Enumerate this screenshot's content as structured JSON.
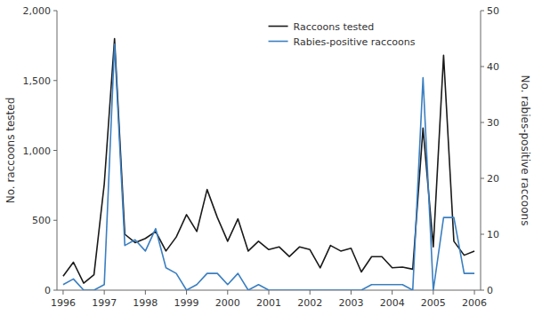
{
  "chart_data": {
    "type": "line",
    "x": [
      1996.0,
      1996.25,
      1996.5,
      1996.75,
      1997.0,
      1997.25,
      1997.5,
      1997.75,
      1998.0,
      1998.25,
      1998.5,
      1998.75,
      1999.0,
      1999.25,
      1999.5,
      1999.75,
      2000.0,
      2000.25,
      2000.5,
      2000.75,
      2001.0,
      2001.25,
      2001.5,
      2001.75,
      2002.0,
      2002.25,
      2002.5,
      2002.75,
      2003.0,
      2003.25,
      2003.5,
      2003.75,
      2004.0,
      2004.25,
      2004.5,
      2004.75,
      2005.0,
      2005.25,
      2005.5,
      2005.75,
      2006.0
    ],
    "series": [
      {
        "name": "Raccoons tested",
        "color": "#1a1a1a",
        "values": [
          100,
          200,
          50,
          110,
          760,
          1800,
          400,
          340,
          370,
          420,
          280,
          380,
          540,
          420,
          720,
          520,
          350,
          510,
          280,
          350,
          290,
          310,
          240,
          310,
          290,
          160,
          320,
          280,
          300,
          130,
          240,
          240,
          160,
          165,
          150,
          1160,
          310,
          1680,
          350,
          250,
          280
        ]
      },
      {
        "name": "Rabies-positive raccoons",
        "color": "#3a7fc1",
        "axis": "y2",
        "values": [
          1,
          2,
          0,
          0,
          1,
          44,
          8,
          9,
          7,
          11,
          4,
          3,
          0,
          1,
          3,
          3,
          1,
          3,
          0,
          1,
          0,
          0,
          0,
          0,
          0,
          0,
          0,
          0,
          0,
          0,
          1,
          1,
          1,
          1,
          0,
          38,
          0,
          13,
          13,
          3,
          3
        ]
      }
    ],
    "y_label": "No. raccoons tested",
    "y2_label": "No. rabies-positive raccoons",
    "xlim": [
      1995.85,
      2006.15
    ],
    "xticks": [
      1996,
      1997,
      1998,
      1999,
      2000,
      2001,
      2002,
      2003,
      2004,
      2005,
      2006
    ],
    "ylim": [
      0,
      2000
    ],
    "yticks": [
      0,
      500,
      {
        "value": 1000,
        "label": "1,000"
      },
      {
        "value": 1500,
        "label": "1,500"
      },
      {
        "value": 2000,
        "label": "2,000"
      }
    ],
    "y2lim": [
      0,
      50
    ],
    "y2ticks": [
      0,
      10,
      20,
      30,
      40,
      50
    ],
    "grid": false,
    "legend": "upper right"
  }
}
